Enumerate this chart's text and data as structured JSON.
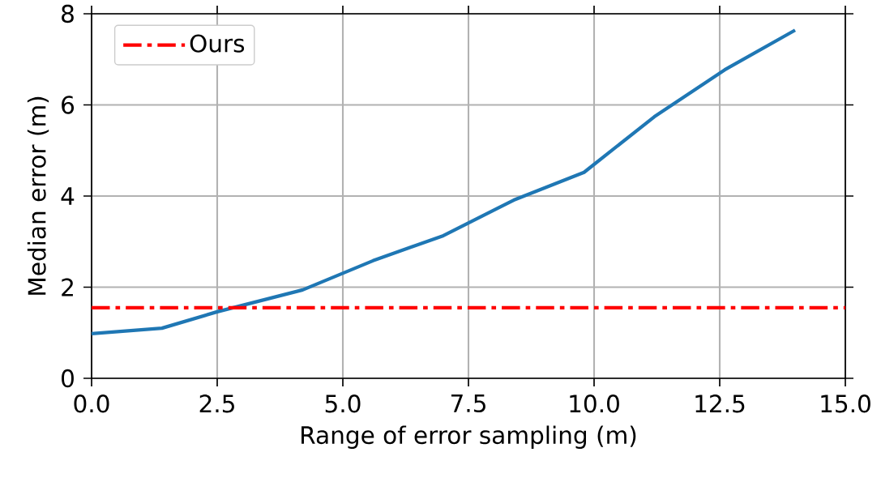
{
  "chart_data": {
    "type": "line",
    "xlabel": "Range of error sampling (m)",
    "ylabel": "Median error (m)",
    "x": [
      0,
      1.4,
      2.5,
      4.2,
      5.6,
      7.0,
      8.4,
      9.8,
      11.2,
      12.6,
      14.0
    ],
    "series": [
      {
        "color": "#1f77b4",
        "values": [
          0.98,
          1.1,
          1.46,
          1.94,
          2.58,
          3.13,
          3.91,
          4.52,
          5.74,
          6.77,
          7.64
        ]
      }
    ],
    "xlim": [
      0,
      15
    ],
    "ylim": [
      0,
      8
    ],
    "xticks": [
      {
        "value": 0,
        "label": "0.0"
      },
      {
        "value": 2.5,
        "label": "2.5"
      },
      {
        "value": 5,
        "label": "5.0"
      },
      {
        "value": 7.5,
        "label": "7.5"
      },
      {
        "value": 10,
        "label": "10.0"
      },
      {
        "value": 12.5,
        "label": "12.5"
      },
      {
        "value": 15,
        "label": "15.0"
      }
    ],
    "yticks": [
      0,
      2,
      4,
      6,
      8
    ],
    "ref_lines": [
      {
        "axis": "y",
        "value": 1.55,
        "label": "Ours",
        "color": "#ff0000",
        "line_style": "dashdot"
      }
    ],
    "grid": true,
    "legend": "top left",
    "marker": "none",
    "line_style": "solid"
  }
}
